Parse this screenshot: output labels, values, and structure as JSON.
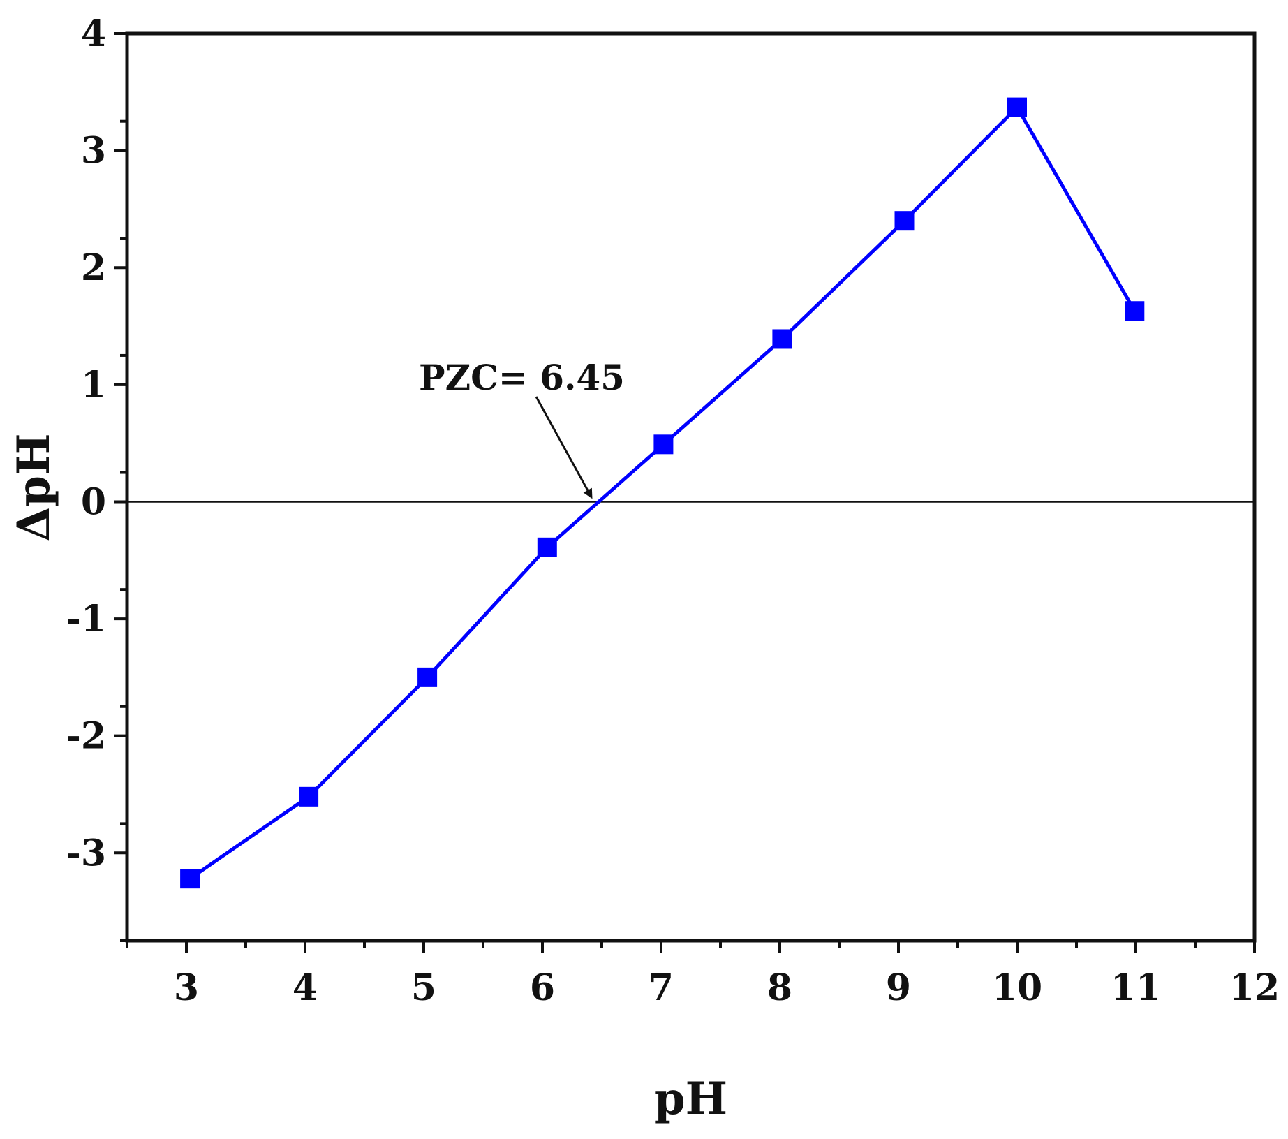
{
  "chart_data": {
    "type": "line",
    "xlabel": "pH",
    "ylabel": "ΔpH",
    "xlim": [
      2.5,
      12
    ],
    "ylim": [
      -3.75,
      4
    ],
    "xticks": [
      3,
      4,
      5,
      6,
      7,
      8,
      9,
      10,
      11,
      12
    ],
    "yticks": [
      -3,
      -2,
      -1,
      0,
      1,
      2,
      3,
      4
    ],
    "xtick_labels": [
      "3",
      "4",
      "5",
      "6",
      "7",
      "8",
      "9",
      "10",
      "11",
      "12"
    ],
    "ytick_labels": [
      "-3",
      "-2",
      "-1",
      "0",
      "1",
      "2",
      "3",
      "4"
    ],
    "grid": false,
    "series": [
      {
        "color": "#0000ff",
        "marker": "square",
        "x": [
          3.03,
          4.03,
          5.03,
          6.04,
          7.02,
          8.02,
          9.05,
          10.0,
          10.99
        ],
        "y": [
          -3.22,
          -2.52,
          -1.5,
          -0.39,
          0.49,
          1.39,
          2.4,
          3.37,
          1.63
        ]
      }
    ],
    "reference_line": {
      "y": 0
    },
    "annotation": {
      "text": "PZC= 6.45",
      "x": 6.45,
      "y": 0
    },
    "colors": {
      "series": "#0000ff",
      "axes": "#111111"
    }
  }
}
